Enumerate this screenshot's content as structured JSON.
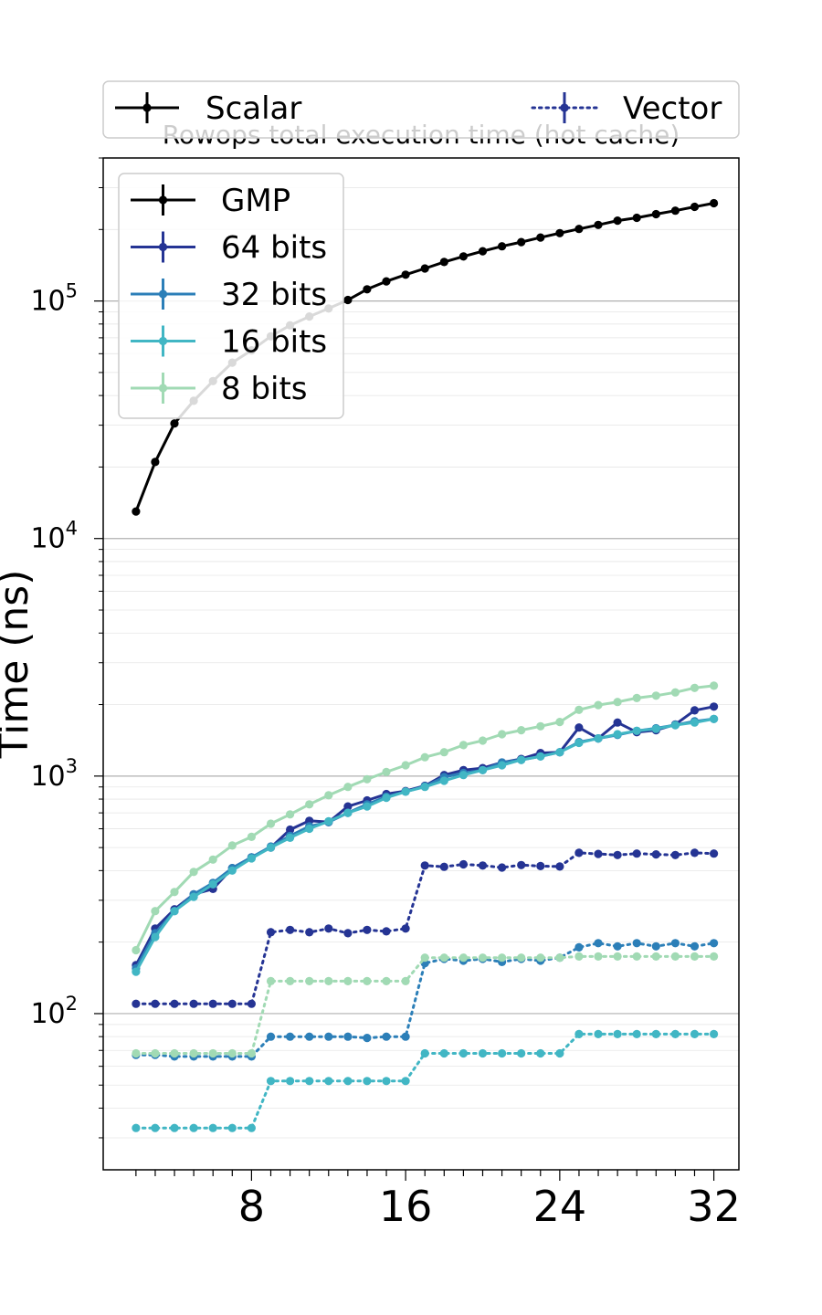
{
  "chart_data": {
    "type": "line",
    "title": "Rowops total execution time (hot cache)",
    "xlabel": "",
    "ylabel": "Time (ns)",
    "yscale": "log",
    "ylim": [
      22,
      400000
    ],
    "xlim": [
      0.3,
      33.3
    ],
    "x_ticks": [
      8,
      16,
      24,
      32
    ],
    "y_ticks": [
      {
        "value": 100,
        "label": "10",
        "exp": "2"
      },
      {
        "value": 1000,
        "label": "10",
        "exp": "3"
      },
      {
        "value": 10000,
        "label": "10",
        "exp": "4"
      },
      {
        "value": 100000,
        "label": "10",
        "exp": "5"
      }
    ],
    "grid": "horizontal, log minor",
    "style_legend": {
      "placement": "top, above plot",
      "entries": [
        {
          "label": "Scalar",
          "linestyle": "solid",
          "color": "#000000"
        },
        {
          "label": "Vector",
          "linestyle": "dotted",
          "color": "#253494"
        }
      ]
    },
    "series_legend_placement": "top-left",
    "x": [
      2,
      3,
      4,
      5,
      6,
      7,
      8,
      9,
      10,
      11,
      12,
      13,
      14,
      15,
      16,
      17,
      18,
      19,
      20,
      21,
      22,
      23,
      24,
      25,
      26,
      27,
      28,
      29,
      30,
      31,
      32
    ],
    "series": [
      {
        "name": "GMP",
        "kind": "scalar",
        "color": "#000000",
        "in_legend": true,
        "values": [
          13000,
          21000,
          30500,
          38000,
          46000,
          55000,
          62000,
          71000,
          79000,
          86000,
          93000,
          101000,
          112000,
          121000,
          129000,
          137000,
          146000,
          154000,
          162000,
          170000,
          177000,
          185000,
          193000,
          201000,
          209000,
          218000,
          224000,
          232000,
          240000,
          249000,
          258000
        ]
      },
      {
        "name": "64 bits",
        "kind": "scalar",
        "color": "#253494",
        "in_legend": true,
        "values": [
          160,
          228,
          275,
          318,
          335,
          410,
          455,
          500,
          595,
          648,
          640,
          745,
          790,
          840,
          865,
          910,
          1010,
          1060,
          1080,
          1140,
          1180,
          1250,
          1260,
          1600,
          1440,
          1680,
          1530,
          1560,
          1650,
          1890,
          1960
        ]
      },
      {
        "name": "32 bits",
        "kind": "scalar",
        "color": "#2c7fb8",
        "in_legend": true,
        "values": [
          155,
          218,
          270,
          318,
          355,
          410,
          455,
          505,
          560,
          615,
          640,
          700,
          760,
          820,
          860,
          905,
          990,
          1030,
          1060,
          1140,
          1170,
          1210,
          1260,
          1390,
          1440,
          1490,
          1550,
          1590,
          1640,
          1700,
          1740
        ]
      },
      {
        "name": "16 bits",
        "kind": "scalar",
        "color": "#41b6c4",
        "in_legend": true,
        "values": [
          150,
          210,
          270,
          310,
          350,
          400,
          450,
          500,
          550,
          600,
          645,
          700,
          745,
          810,
          860,
          900,
          955,
          1010,
          1060,
          1110,
          1170,
          1210,
          1260,
          1380,
          1440,
          1500,
          1550,
          1580,
          1640,
          1680,
          1740
        ]
      },
      {
        "name": "8 bits",
        "kind": "scalar",
        "color": "#a1dab4",
        "in_legend": true,
        "values": [
          185,
          270,
          325,
          395,
          445,
          510,
          555,
          630,
          690,
          760,
          830,
          900,
          970,
          1040,
          1110,
          1200,
          1260,
          1350,
          1410,
          1500,
          1560,
          1620,
          1690,
          1900,
          1990,
          2050,
          2130,
          2180,
          2250,
          2350,
          2400
        ]
      },
      {
        "name": "64 bits",
        "kind": "vector",
        "color": "#253494",
        "in_legend": false,
        "values": [
          110,
          110,
          110,
          110,
          110,
          110,
          110,
          220,
          225,
          220,
          228,
          218,
          225,
          222,
          228,
          420,
          415,
          425,
          420,
          412,
          422,
          418,
          416,
          475,
          470,
          465,
          472,
          468,
          465,
          475,
          472
        ]
      },
      {
        "name": "32 bits",
        "kind": "vector",
        "color": "#2c7fb8",
        "in_legend": false,
        "values": [
          67,
          67,
          66,
          66,
          66,
          66,
          66,
          80,
          80,
          80,
          80,
          80,
          79,
          80,
          80,
          163,
          170,
          167,
          170,
          165,
          170,
          167,
          172,
          190,
          198,
          192,
          198,
          192,
          198,
          192,
          198
        ]
      },
      {
        "name": "16 bits",
        "kind": "vector",
        "color": "#41b6c4",
        "in_legend": false,
        "values": [
          33,
          33,
          33,
          33,
          33,
          33,
          33,
          52,
          52,
          52,
          52,
          52,
          52,
          52,
          52,
          68,
          68,
          68,
          68,
          68,
          68,
          68,
          68,
          82,
          82,
          82,
          82,
          82,
          82,
          82,
          82
        ]
      },
      {
        "name": "8 bits",
        "kind": "vector",
        "color": "#a1dab4",
        "in_legend": false,
        "values": [
          68,
          68,
          68,
          68,
          68,
          68,
          68,
          137,
          137,
          137,
          137,
          137,
          137,
          137,
          137,
          172,
          172,
          172,
          172,
          172,
          172,
          172,
          172,
          174,
          174,
          174,
          174,
          174,
          174,
          174,
          174
        ]
      }
    ]
  }
}
